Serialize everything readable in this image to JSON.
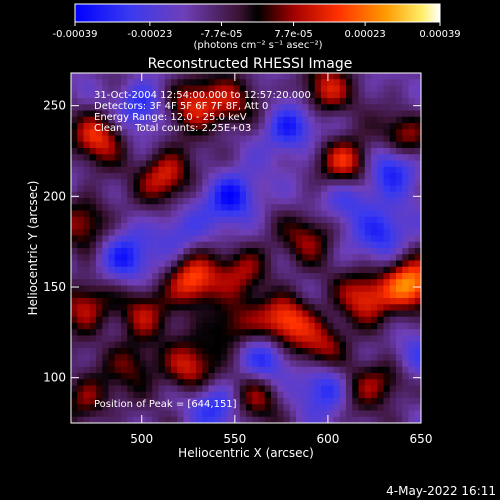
{
  "chart_data": {
    "type": "heatmap",
    "title": "Reconstructed RHESSI Image",
    "xlabel": "Heliocentric X (arcsec)",
    "ylabel": "Heliocentric Y (arcsec)",
    "xlim": [
      462,
      650
    ],
    "ylim": [
      75,
      268
    ],
    "x_ticks": [
      500,
      550,
      600,
      650
    ],
    "y_ticks": [
      100,
      150,
      200,
      250
    ],
    "colorbar": {
      "ticks": [
        "-0.00039",
        "-0.00023",
        "-7.7e-05",
        "7.7e-05",
        "0.00023",
        "0.00039"
      ],
      "unit_label": "(photons cm⁻² s⁻¹ asec⁻²)",
      "range": [
        -0.00039,
        0.00039
      ]
    },
    "annotations": [
      "31-Oct-2004 12:54:00.000 to 12:57:20.000",
      "Detectors: 3F 4F 5F 6F 7F 8F, Att 0",
      "Energy Range: 12.0 - 25.0 keV",
      "Clean    Total counts: 2.25E+03"
    ],
    "peak_label": "Position of Peak = [644,151]",
    "peak": [
      644,
      151
    ],
    "blobs": [
      {
        "x": 644,
        "y": 151,
        "v": 0.00039
      },
      {
        "x": 527,
        "y": 153,
        "v": 0.00033
      },
      {
        "x": 578,
        "y": 132,
        "v": 0.00031
      },
      {
        "x": 513,
        "y": 211,
        "v": 0.00028
      },
      {
        "x": 528,
        "y": 252,
        "v": 0.00027
      },
      {
        "x": 598,
        "y": 258,
        "v": 0.00024
      },
      {
        "x": 611,
        "y": 219,
        "v": 0.0003
      },
      {
        "x": 477,
        "y": 233,
        "v": 0.00026
      },
      {
        "x": 470,
        "y": 186,
        "v": 0.0002
      },
      {
        "x": 470,
        "y": 140,
        "v": 0.00024
      },
      {
        "x": 500,
        "y": 134,
        "v": 0.00018
      },
      {
        "x": 556,
        "y": 160,
        "v": 0.0002
      },
      {
        "x": 590,
        "y": 178,
        "v": 0.00018
      },
      {
        "x": 641,
        "y": 232,
        "v": 0.00022
      },
      {
        "x": 620,
        "y": 145,
        "v": 0.00025
      },
      {
        "x": 598,
        "y": 118,
        "v": 0.00022
      },
      {
        "x": 470,
        "y": 88,
        "v": 0.00019
      },
      {
        "x": 525,
        "y": 105,
        "v": 0.00024
      },
      {
        "x": 562,
        "y": 90,
        "v": 0.00018
      },
      {
        "x": 635,
        "y": 100,
        "v": 0.00018
      },
      {
        "x": 548,
        "y": 250,
        "v": 0.00018
      },
      {
        "x": 617,
        "y": 96,
        "v": 0.00016
      },
      {
        "x": 548,
        "y": 128,
        "v": 0.0002
      },
      {
        "x": 496,
        "y": 108,
        "v": 0.00016
      },
      {
        "x": 549,
        "y": 200,
        "v": -0.00026
      },
      {
        "x": 580,
        "y": 238,
        "v": -0.00024
      },
      {
        "x": 635,
        "y": 218,
        "v": -0.00025
      },
      {
        "x": 630,
        "y": 180,
        "v": -0.00022
      },
      {
        "x": 500,
        "y": 250,
        "v": -0.0002
      },
      {
        "x": 490,
        "y": 165,
        "v": -0.00022
      },
      {
        "x": 600,
        "y": 95,
        "v": -0.00024
      },
      {
        "x": 645,
        "y": 110,
        "v": -0.0002
      },
      {
        "x": 540,
        "y": 85,
        "v": -0.00018
      },
      {
        "x": 567,
        "y": 110,
        "v": -0.00018
      },
      {
        "x": 612,
        "y": 200,
        "v": -0.00018
      },
      {
        "x": 520,
        "y": 180,
        "v": -0.00016
      }
    ]
  },
  "footer": {
    "date": "4-May-2022 16:11"
  }
}
